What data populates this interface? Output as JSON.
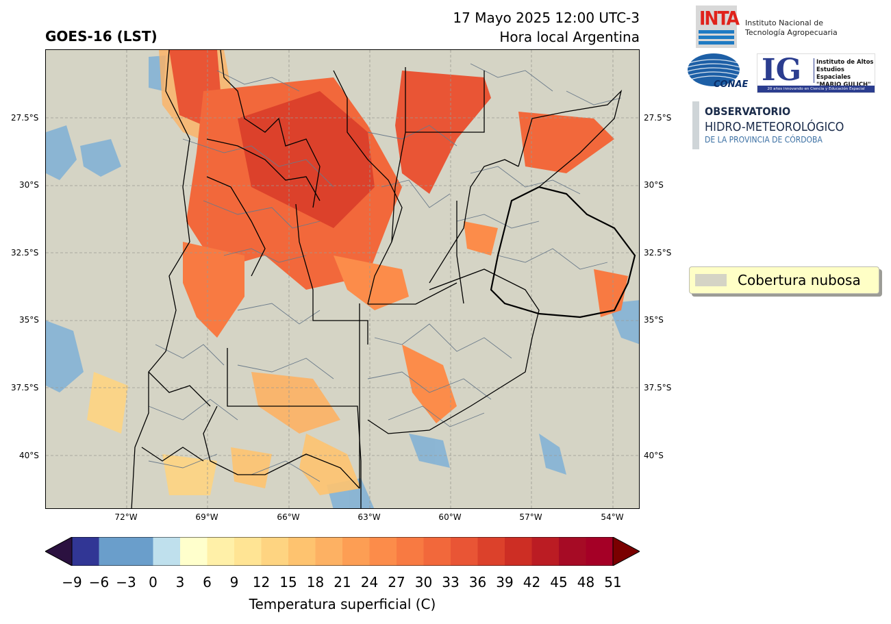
{
  "header": {
    "title": "GOES-16 (LST)",
    "date_line": "17 Mayo 2025 12:00 UTC-3",
    "time_line": "Hora local Argentina"
  },
  "map": {
    "lat_labels": [
      "27.5°S",
      "30°S",
      "32.5°S",
      "35°S",
      "37.5°S",
      "40°S"
    ],
    "lon_labels": [
      "72°W",
      "69°W",
      "66°W",
      "63°W",
      "60°W",
      "57°W",
      "54°W"
    ],
    "background_color": "#d5d4c5",
    "boundary_color": "#6a7a8a"
  },
  "legend": {
    "label": "Cobertura nubosa",
    "swatch_color": "#d5d4c5"
  },
  "colorbar": {
    "title": "Temperatura superficial (C)",
    "ticks": [
      "−9",
      "−6",
      "−3",
      "0",
      "3",
      "6",
      "9",
      "12",
      "15",
      "18",
      "21",
      "24",
      "27",
      "30",
      "33",
      "36",
      "39",
      "42",
      "45",
      "48",
      "51"
    ],
    "colors": [
      "#313695",
      "#6a9ecb",
      "#bfe0ed",
      "#ffffcc",
      "#fff0a8",
      "#ffe494",
      "#fed481",
      "#fec36f",
      "#fdb163",
      "#fd9e54",
      "#fc8c4a",
      "#f87a42",
      "#f2683b",
      "#e95535",
      "#dc412b",
      "#cd2e24",
      "#bb1c23",
      "#a60b25",
      "#a50026"
    ],
    "under_color": "#2b1140",
    "over_color": "#7a0000"
  },
  "logos": {
    "inta_word": "INTA",
    "inta_name_1": "Instituto Nacional de",
    "inta_name_2": "Tecnología Agropecuaria",
    "conae_word": "CONAE",
    "ig_letters": "IG",
    "ig_name_1": "Instituto de Altos",
    "ig_name_2": "Estudios Espaciales",
    "ig_name_3": "\"MARIO GULICH\"",
    "ig_strip": "20 años innovando en Ciencia y Educación Espacial",
    "obs_1": "OBSERVATORIO",
    "obs_2": "HIDRO-METEOROLÓGICO",
    "obs_3": "DE LA PROVINCIA DE CÓRDOBA"
  }
}
